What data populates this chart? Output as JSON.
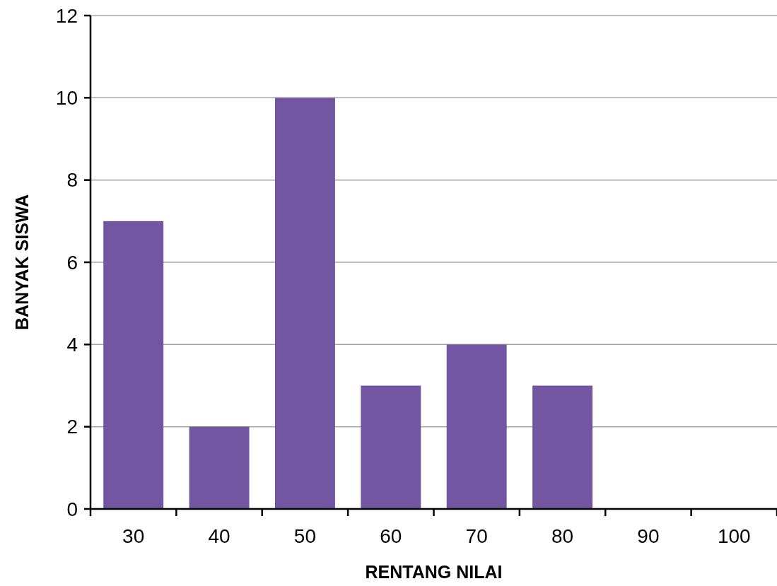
{
  "chart_data": {
    "type": "bar",
    "xlabel": "RENTANG  NILAI",
    "ylabel": "BANYAK  SISWA",
    "categories": [
      "30",
      "40",
      "50",
      "60",
      "70",
      "80",
      "90",
      "100"
    ],
    "values": [
      7,
      2,
      10,
      3,
      4,
      3,
      0,
      0
    ],
    "color": "#7356a2",
    "ylim": [
      0,
      12
    ],
    "yticks": [
      0,
      2,
      4,
      6,
      8,
      10,
      12
    ],
    "grid": "y"
  }
}
